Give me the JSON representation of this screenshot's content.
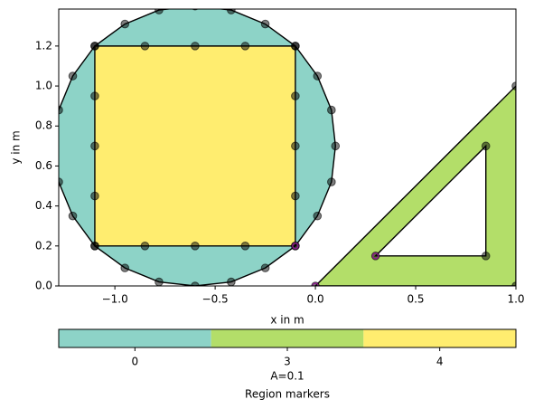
{
  "chart_data": {
    "type": "mesh",
    "xlabel": "x in m",
    "ylabel": "y in m",
    "xlim": [
      -1.28,
      1.0
    ],
    "ylim": [
      0,
      1.385
    ],
    "xticks": [
      {
        "value": -1.0,
        "label": "−1.0"
      },
      {
        "value": -0.5,
        "label": "−0.5"
      },
      {
        "value": 0.0,
        "label": "0.0"
      },
      {
        "value": 0.5,
        "label": "0.5"
      },
      {
        "value": 1.0,
        "label": "1.0"
      }
    ],
    "yticks": [
      {
        "value": 0.0,
        "label": "0.0"
      },
      {
        "value": 0.2,
        "label": "0.2"
      },
      {
        "value": 0.4,
        "label": "0.4"
      },
      {
        "value": 0.6,
        "label": "0.6"
      },
      {
        "value": 0.8,
        "label": "0.8"
      },
      {
        "value": 1.0,
        "label": "1.0"
      },
      {
        "value": 1.2,
        "label": "1.2"
      }
    ],
    "polygons": [
      {
        "region": 0,
        "color": "#8dd3c7",
        "rings": [
          {
            "x": [
              0.1,
              0.08,
              0.01,
              -0.1,
              -0.25,
              -0.42,
              -0.6,
              -0.78,
              -0.95,
              -1.1,
              -1.21,
              -1.28,
              -1.3,
              -1.28,
              -1.21,
              -1.1,
              -0.95,
              -0.78,
              -0.6,
              -0.42,
              -0.25,
              -0.1,
              0.01,
              0.08
            ],
            "y": [
              0.7,
              0.88,
              1.05,
              1.2,
              1.31,
              1.38,
              1.4,
              1.38,
              1.31,
              1.2,
              1.05,
              0.88,
              0.7,
              0.52,
              0.35,
              0.2,
              0.09,
              0.02,
              0.0,
              0.02,
              0.09,
              0.2,
              0.35,
              0.52
            ]
          }
        ]
      },
      {
        "region": 4,
        "color": "#ffed6f",
        "rings": [
          {
            "x": [
              -1.1,
              -0.85,
              -0.6,
              -0.35,
              -0.1,
              -0.1,
              -0.1,
              -0.1,
              -0.1,
              -0.35,
              -0.6,
              -0.85,
              -1.1,
              -1.1,
              -1.1,
              -1.1
            ],
            "y": [
              0.2,
              0.2,
              0.2,
              0.2,
              0.2,
              0.45,
              0.7,
              0.95,
              1.2,
              1.2,
              1.2,
              1.2,
              1.2,
              0.95,
              0.7,
              0.45
            ]
          }
        ]
      },
      {
        "region": 3,
        "color": "#b3de69",
        "rings": [
          {
            "x": [
              0.0,
              1.0,
              1.0
            ],
            "y": [
              0.0,
              0.0,
              1.0
            ]
          },
          {
            "x": [
              0.3,
              0.85,
              0.85
            ],
            "y": [
              0.15,
              0.15,
              0.7
            ]
          }
        ]
      }
    ],
    "region_markers": {
      "x": [
        -0.1,
        0.0,
        0.3
      ],
      "y": [
        0.2,
        0.0,
        0.15
      ]
    },
    "colorbar": {
      "ticks": [
        0,
        3,
        4
      ],
      "colors": [
        "#8dd3c7",
        "#b3de69",
        "#ffed6f"
      ],
      "annotation": "A=0.1",
      "label": "Region markers"
    }
  }
}
